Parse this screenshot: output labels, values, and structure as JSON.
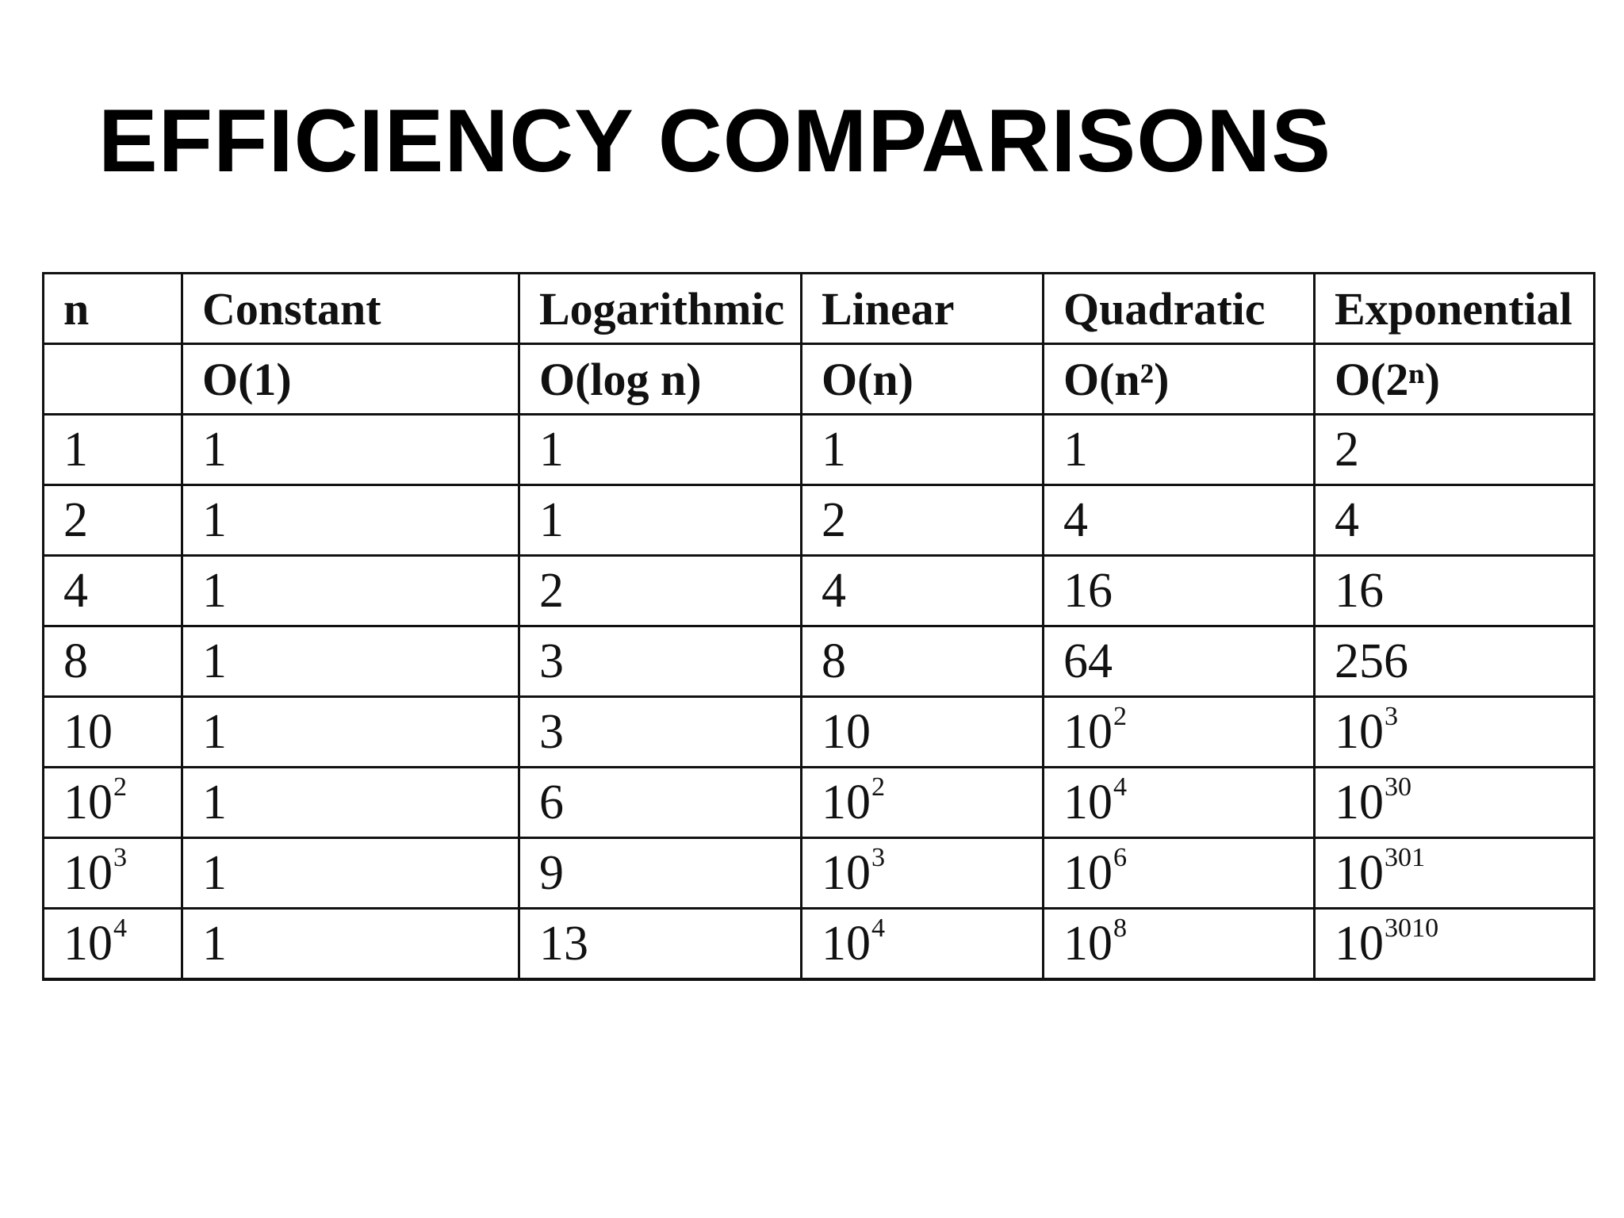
{
  "slide": {
    "title": "EFFICIENCY COMPARISONS"
  },
  "table": {
    "headers": [
      {
        "name": "n",
        "notation": ""
      },
      {
        "name": "Constant",
        "notation": "O(1)"
      },
      {
        "name": "Logarithmic",
        "notation": "O(log n)"
      },
      {
        "name": "Linear",
        "notation": "O(n)"
      },
      {
        "name": "Quadratic",
        "notation": "O(n²)"
      },
      {
        "name": "Exponential",
        "notation": "O(2ⁿ)"
      }
    ],
    "rows": [
      [
        "1",
        "1",
        "1",
        "1",
        "1",
        "2"
      ],
      [
        "2",
        "1",
        "1",
        "2",
        "4",
        "4"
      ],
      [
        "4",
        "1",
        "2",
        "4",
        "16",
        "16"
      ],
      [
        "8",
        "1",
        "3",
        "8",
        "64",
        "256"
      ],
      [
        "10",
        "1",
        "3",
        "10",
        "10^2",
        "10^3"
      ],
      [
        "10^2",
        "1",
        "6",
        "10^2",
        "10^4",
        "10^30"
      ],
      [
        "10^3",
        "1",
        "9",
        "10^3",
        "10^6",
        "10^301"
      ],
      [
        "10^4",
        "1",
        "13",
        "10^4",
        "10^8",
        "10^3010"
      ]
    ]
  }
}
